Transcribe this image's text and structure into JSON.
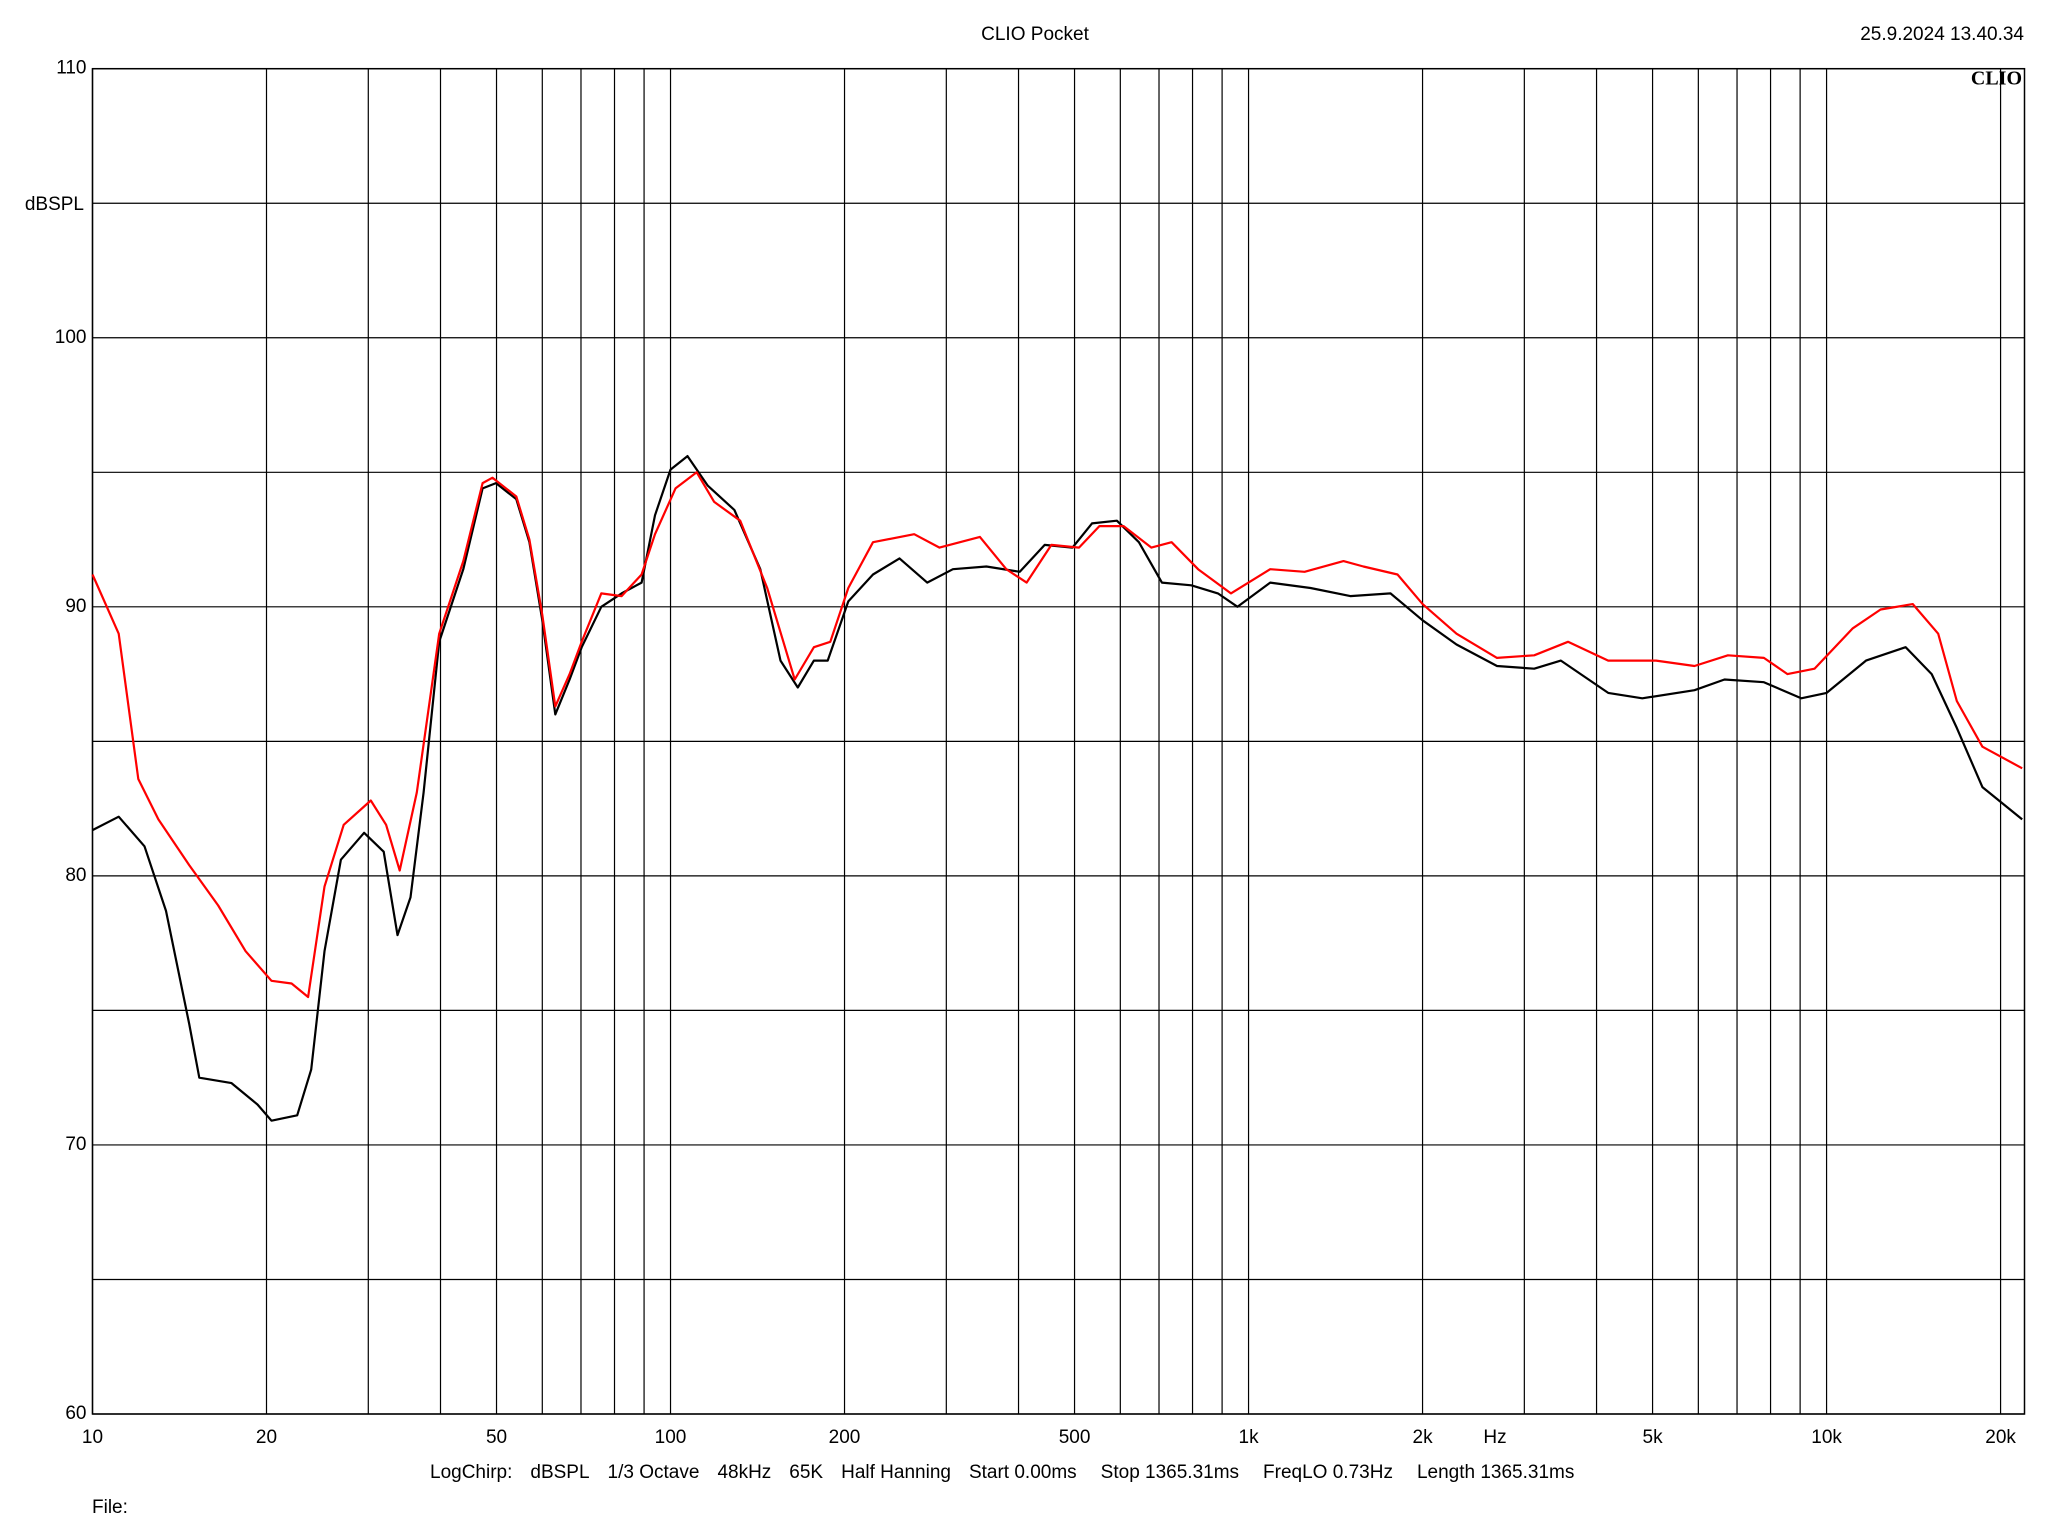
{
  "chart_data": {
    "type": "line",
    "title": "CLIO Pocket",
    "timestamp": "25.9.2024 13.40.34",
    "logo": "CLIO",
    "y_label": "dBSPL",
    "x_unit": "Hz",
    "settings": [
      "LogChirp:",
      "dBSPL",
      "1/3 Octave",
      "48kHz",
      "65K",
      "Half Hanning",
      "Start 0.00ms",
      "Stop 1365.31ms",
      "FreqLO 0.73Hz",
      "Length 1365.31ms"
    ],
    "file_label": "File:",
    "log_x": true,
    "grid": true,
    "xlim": [
      10,
      22000
    ],
    "ylim": [
      60,
      110
    ],
    "xticks": [
      10,
      20,
      50,
      100,
      200,
      500,
      {
        "value": 1000,
        "label": "1k"
      },
      {
        "value": 2000,
        "label": "2k"
      },
      {
        "value": 5000,
        "label": "5k"
      },
      {
        "value": 10000,
        "label": "10k"
      },
      {
        "value": 20000,
        "label": "20k"
      }
    ],
    "xminor": [
      30,
      40,
      60,
      70,
      80,
      90,
      300,
      400,
      600,
      700,
      800,
      900,
      3000,
      4000,
      6000,
      7000,
      8000,
      9000
    ],
    "yticks": [
      60,
      70,
      80,
      90,
      100,
      110
    ],
    "yminor": [
      65,
      75,
      85,
      95,
      105
    ],
    "series": [
      {
        "color": "#000000",
        "x": [
          10,
          11.1,
          12.3,
          13.4,
          14.7,
          15.3,
          17.4,
          19.3,
          20.4,
          22.6,
          23.9,
          25.2,
          26.9,
          29.5,
          31.9,
          33.7,
          35.5,
          37.4,
          39.8,
          43.8,
          47.3,
          49.9,
          54.1,
          57,
          60,
          63.2,
          66.9,
          70.2,
          75.9,
          82.3,
          89.1,
          94,
          100,
          107,
          116,
          129,
          143,
          155,
          166,
          177,
          187,
          203,
          224,
          249,
          278,
          308,
          352,
          402,
          444,
          496,
          536,
          592,
          646,
          708,
          796,
          885,
          957,
          1090,
          1280,
          1500,
          1760,
          2000,
          2290,
          2690,
          3120,
          3470,
          4190,
          4800,
          5910,
          6660,
          7790,
          9040,
          10000,
          11700,
          13700,
          15200,
          16800,
          18600,
          21800
        ],
        "values": [
          81.7,
          82.2,
          81.1,
          78.7,
          74.5,
          72.5,
          72.3,
          71.5,
          70.9,
          71.1,
          72.8,
          77.2,
          80.6,
          81.6,
          80.9,
          77.8,
          79.2,
          83.1,
          88.7,
          91.4,
          94.4,
          94.6,
          94.0,
          92.4,
          89.5,
          86.0,
          87.3,
          88.5,
          90.0,
          90.5,
          90.9,
          93.4,
          95.1,
          95.6,
          94.5,
          93.6,
          91.4,
          88.0,
          87.0,
          88.0,
          88.0,
          90.2,
          91.2,
          91.8,
          90.9,
          91.4,
          91.5,
          91.3,
          92.3,
          92.2,
          93.1,
          93.2,
          92.4,
          90.9,
          90.8,
          90.5,
          90.0,
          90.9,
          90.7,
          90.4,
          90.5,
          89.5,
          88.6,
          87.8,
          87.7,
          88.0,
          86.8,
          86.6,
          86.9,
          87.3,
          87.2,
          86.6,
          86.8,
          88.0,
          88.5,
          87.5,
          85.5,
          83.3,
          82.1
        ]
      },
      {
        "color": "#ff0000",
        "x": [
          10,
          11.1,
          12,
          13,
          14.7,
          16.5,
          18.4,
          20.4,
          22.1,
          23.6,
          25.2,
          27.2,
          30.3,
          32.2,
          34,
          36.4,
          39.8,
          43.8,
          47.3,
          49.2,
          54.1,
          57,
          60,
          63.2,
          66.9,
          70.2,
          75.9,
          82.3,
          89.1,
          94,
          102,
          111,
          119,
          132,
          147,
          164,
          177,
          189,
          203,
          224,
          264,
          292,
          343,
          381,
          413,
          456,
          509,
          552,
          608,
          679,
          736,
          818,
          932,
          1090,
          1250,
          1460,
          1580,
          1810,
          2000,
          2290,
          2690,
          3120,
          3570,
          4190,
          5070,
          5910,
          6750,
          7790,
          8560,
          9530,
          11100,
          12400,
          14100,
          15600,
          16800,
          18600,
          21800
        ],
        "values": [
          91.2,
          89.0,
          83.6,
          82.1,
          80.4,
          78.9,
          77.2,
          76.1,
          76.0,
          75.5,
          79.6,
          81.9,
          82.8,
          81.9,
          80.2,
          83.1,
          89.0,
          91.7,
          94.6,
          94.8,
          94.1,
          92.5,
          89.7,
          86.3,
          87.5,
          88.7,
          90.5,
          90.4,
          91.2,
          92.7,
          94.4,
          95.0,
          93.9,
          93.2,
          90.7,
          87.3,
          88.5,
          88.7,
          90.7,
          92.4,
          92.7,
          92.2,
          92.6,
          91.4,
          90.9,
          92.3,
          92.2,
          93.0,
          93.0,
          92.2,
          92.4,
          91.4,
          90.5,
          91.4,
          91.3,
          91.7,
          91.5,
          91.2,
          90.1,
          89.0,
          88.1,
          88.2,
          88.7,
          88.0,
          88.0,
          87.8,
          88.2,
          88.1,
          87.5,
          87.7,
          89.2,
          89.9,
          90.1,
          89.0,
          86.5,
          84.8,
          84.0
        ]
      }
    ]
  }
}
